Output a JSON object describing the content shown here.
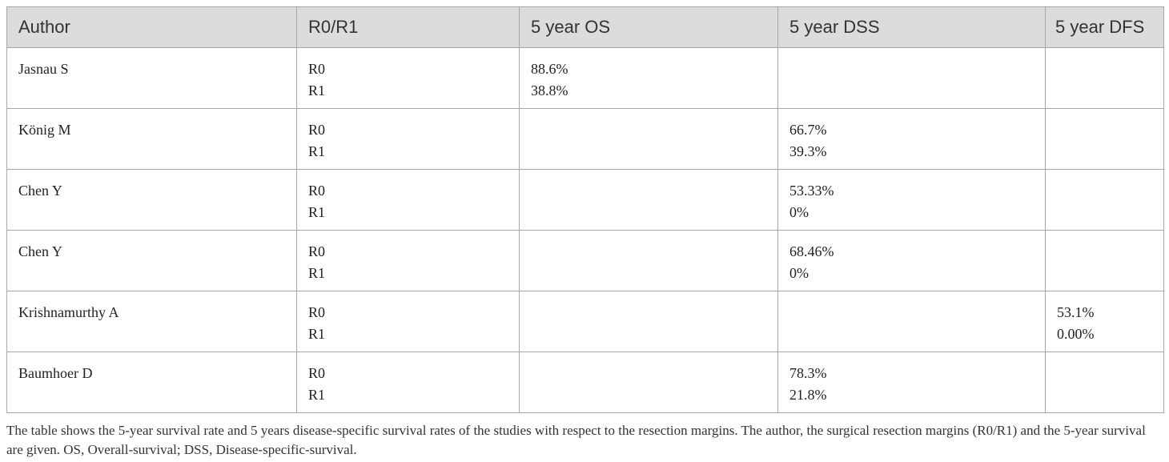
{
  "table": {
    "headers": [
      "Author",
      "R0/R1",
      "5 year OS",
      "5 year DSS",
      "5 year DFS"
    ],
    "rows": [
      {
        "author": "Jasnau S",
        "margin": [
          "R0",
          "R1"
        ],
        "os": [
          "88.6%",
          "38.8%"
        ],
        "dss": [
          "",
          ""
        ],
        "dfs": [
          "",
          ""
        ]
      },
      {
        "author": "König M",
        "margin": [
          "R0",
          "R1"
        ],
        "os": [
          "",
          ""
        ],
        "dss": [
          "66.7%",
          "39.3%"
        ],
        "dfs": [
          "",
          ""
        ]
      },
      {
        "author": "Chen Y",
        "margin": [
          "R0",
          "R1"
        ],
        "os": [
          "",
          ""
        ],
        "dss": [
          "53.33%",
          "0%"
        ],
        "dfs": [
          "",
          ""
        ]
      },
      {
        "author": "Chen Y",
        "margin": [
          "R0",
          "R1"
        ],
        "os": [
          "",
          ""
        ],
        "dss": [
          "68.46%",
          "0%"
        ],
        "dfs": [
          "",
          ""
        ]
      },
      {
        "author": "Krishnamurthy A",
        "margin": [
          "R0",
          "R1"
        ],
        "os": [
          "",
          ""
        ],
        "dss": [
          "",
          ""
        ],
        "dfs": [
          "53.1%",
          "0.00%"
        ]
      },
      {
        "author": "Baumhoer D",
        "margin": [
          "R0",
          "R1"
        ],
        "os": [
          "",
          ""
        ],
        "dss": [
          "78.3%",
          "21.8%"
        ],
        "dfs": [
          "",
          ""
        ]
      }
    ]
  },
  "caption": "The table shows the 5-year survival rate and 5 years disease-specific survival rates of the studies with respect to the resection margins. The author, the surgical resection margins (R0/R1) and the 5-year survival are given. OS, Overall-survival; DSS, Disease-specific-survival."
}
